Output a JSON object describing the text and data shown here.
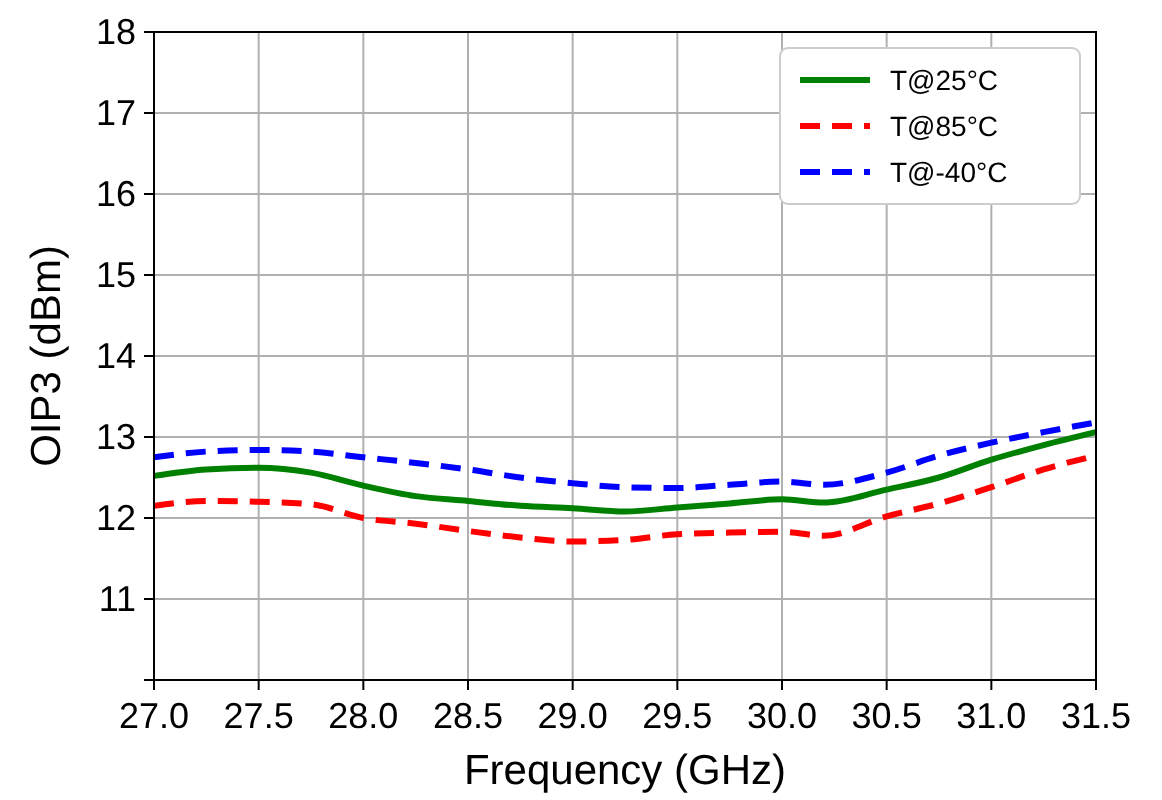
{
  "chart_data": {
    "type": "line",
    "xlabel": "Frequency (GHz)",
    "ylabel": "OIP3 (dBm)",
    "x": [
      27.0,
      27.25,
      27.5,
      27.75,
      28.0,
      28.25,
      28.5,
      28.75,
      29.0,
      29.25,
      29.5,
      29.75,
      30.0,
      30.2,
      30.5,
      30.75,
      31.0,
      31.25,
      31.5
    ],
    "series": [
      {
        "name": "T@25°C",
        "color": "#008000",
        "line_style": "solid",
        "values": [
          12.52,
          12.6,
          12.62,
          12.56,
          12.4,
          12.27,
          12.21,
          12.15,
          12.12,
          12.08,
          12.13,
          12.18,
          12.23,
          12.19,
          12.35,
          12.5,
          12.72,
          12.9,
          13.06
        ]
      },
      {
        "name": "T@85°C",
        "color": "#ff0000",
        "line_style": "dashed",
        "values": [
          12.15,
          12.21,
          12.2,
          12.17,
          12.0,
          11.93,
          11.84,
          11.76,
          11.71,
          11.73,
          11.8,
          11.82,
          11.83,
          11.78,
          12.02,
          12.18,
          12.38,
          12.6,
          12.77
        ]
      },
      {
        "name": "T@-40°C",
        "color": "#0000ff",
        "line_style": "dashed",
        "values": [
          12.75,
          12.82,
          12.84,
          12.82,
          12.75,
          12.68,
          12.6,
          12.5,
          12.43,
          12.38,
          12.37,
          12.41,
          12.45,
          12.41,
          12.56,
          12.77,
          12.93,
          13.06,
          13.18
        ]
      }
    ],
    "xlim": [
      27.0,
      31.5
    ],
    "xticks": [
      {
        "value": 27,
        "label": "27.0"
      },
      {
        "value": 27.5,
        "label": "27.5"
      },
      {
        "value": 28,
        "label": "28.0"
      },
      {
        "value": 28.5,
        "label": "28.5"
      },
      {
        "value": 29,
        "label": "29.0"
      },
      {
        "value": 29.5,
        "label": "29.5"
      },
      {
        "value": 30,
        "label": "30.0"
      },
      {
        "value": 30.5,
        "label": "30.5"
      },
      {
        "value": 31,
        "label": "31.0"
      },
      {
        "value": 31.5,
        "label": "31.5"
      }
    ],
    "ylim": [
      10,
      18
    ],
    "yticks": [
      {
        "value": 10,
        "label": null
      },
      11,
      12,
      13,
      14,
      15,
      16,
      17,
      18
    ],
    "grid": true,
    "legend": "top right"
  }
}
